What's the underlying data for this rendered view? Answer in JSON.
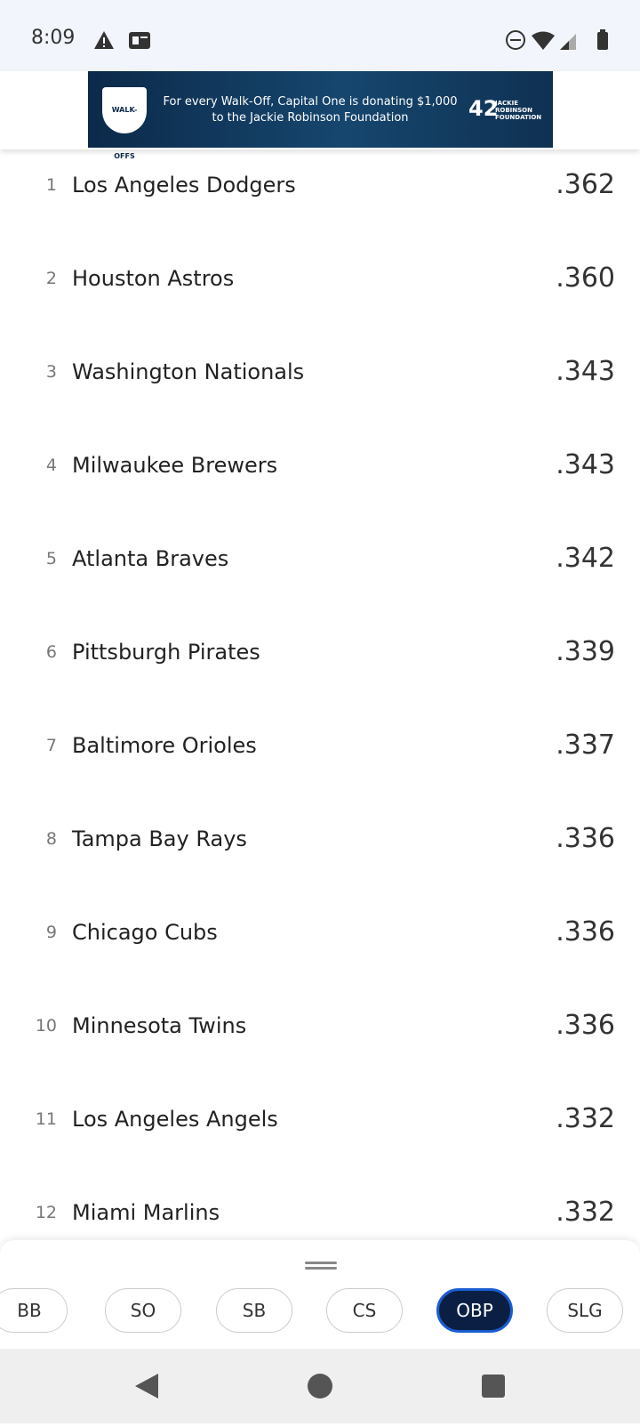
{
  "status_bar": {
    "time": "8:09"
  },
  "banner": {
    "lines": [
      "For every Walk-Off, Capital One is donating $1,000",
      "to the Jackie Robinson Foundation"
    ],
    "left_logo": "WALK-OFFS",
    "right_number": "42",
    "right_logo": "JACKIE ROBINSON FOUNDATION"
  },
  "rows": [
    {
      "rank": "1",
      "team": "Los Angeles Dodgers",
      "value": ".362"
    },
    {
      "rank": "2",
      "team": "Houston Astros",
      "value": ".360"
    },
    {
      "rank": "3",
      "team": "Washington Nationals",
      "value": ".343"
    },
    {
      "rank": "4",
      "team": "Milwaukee Brewers",
      "value": ".343"
    },
    {
      "rank": "5",
      "team": "Atlanta Braves",
      "value": ".342"
    },
    {
      "rank": "6",
      "team": "Pittsburgh Pirates",
      "value": ".339"
    },
    {
      "rank": "7",
      "team": "Baltimore Orioles",
      "value": ".337"
    },
    {
      "rank": "8",
      "team": "Tampa Bay Rays",
      "value": ".336"
    },
    {
      "rank": "9",
      "team": "Chicago Cubs",
      "value": ".336"
    },
    {
      "rank": "10",
      "team": "Minnesota Twins",
      "value": ".336"
    },
    {
      "rank": "11",
      "team": "Los Angeles Angels",
      "value": ".332"
    },
    {
      "rank": "12",
      "team": "Miami Marlins",
      "value": ".332"
    }
  ],
  "tabs": [
    {
      "label": "BB",
      "selected": false
    },
    {
      "label": "SO",
      "selected": false
    },
    {
      "label": "SB",
      "selected": false
    },
    {
      "label": "CS",
      "selected": false
    },
    {
      "label": "OBP",
      "selected": true
    },
    {
      "label": "SLG",
      "selected": false
    }
  ]
}
